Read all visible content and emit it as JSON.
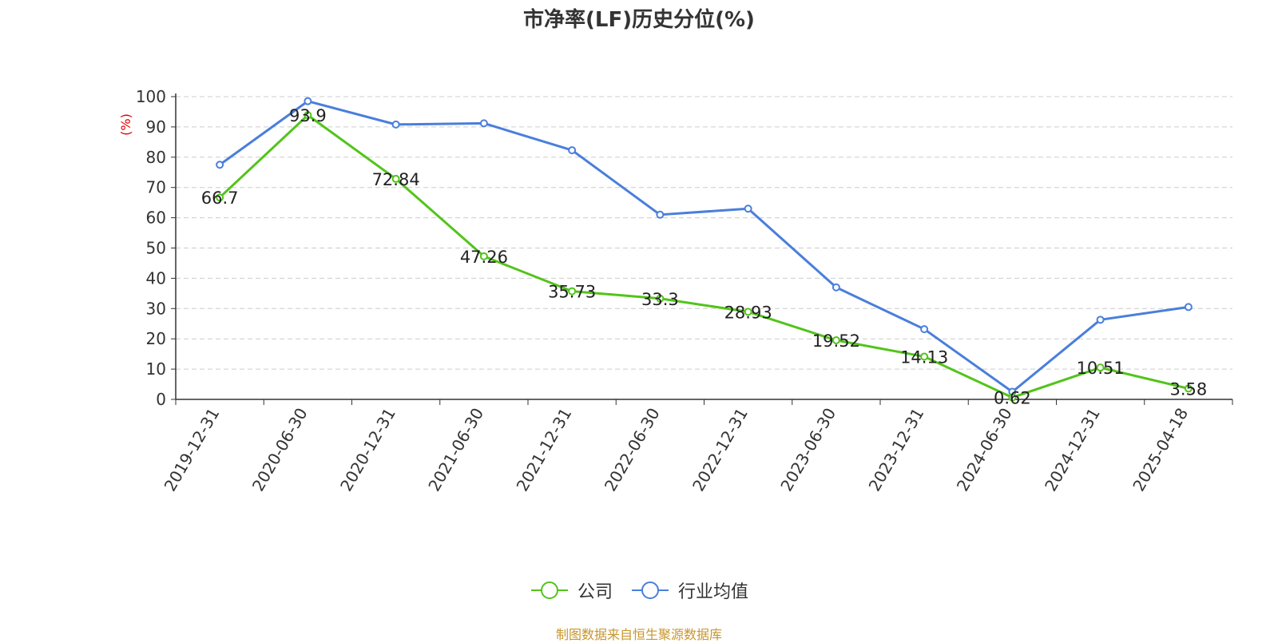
{
  "chart_data": {
    "type": "line",
    "title": "市净率(LF)历史分位(%)",
    "ylabel": "(%)",
    "xlabel": "",
    "ylim": [
      0,
      100
    ],
    "yticks": [
      0,
      10,
      20,
      30,
      40,
      50,
      60,
      70,
      80,
      90,
      100
    ],
    "categories": [
      "2019-12-31",
      "2020-06-30",
      "2020-12-31",
      "2021-06-30",
      "2021-12-31",
      "2022-06-30",
      "2022-12-31",
      "2023-06-30",
      "2023-12-31",
      "2024-06-30",
      "2024-12-31",
      "2025-04-18"
    ],
    "series": [
      {
        "name": "公司",
        "color": "#52c41a",
        "values": [
          66.7,
          93.9,
          72.84,
          47.26,
          35.73,
          33.3,
          28.93,
          19.52,
          14.13,
          0.62,
          10.51,
          3.58
        ],
        "labels": [
          "66.7",
          "93.9",
          "72.84",
          "47.26",
          "35.73",
          "33.3",
          "28.93",
          "19.52",
          "14.13",
          "0.62",
          "10.51",
          "3.58"
        ]
      },
      {
        "name": "行业均值",
        "color": "#4a7fdb",
        "values": [
          77.5,
          98.5,
          90.8,
          91.2,
          82.3,
          61.0,
          63.0,
          37.0,
          23.2,
          2.5,
          26.3,
          30.5
        ]
      }
    ],
    "grid": true,
    "legend_position": "bottom-center"
  },
  "source_text": "制图数据来自恒生聚源数据库"
}
